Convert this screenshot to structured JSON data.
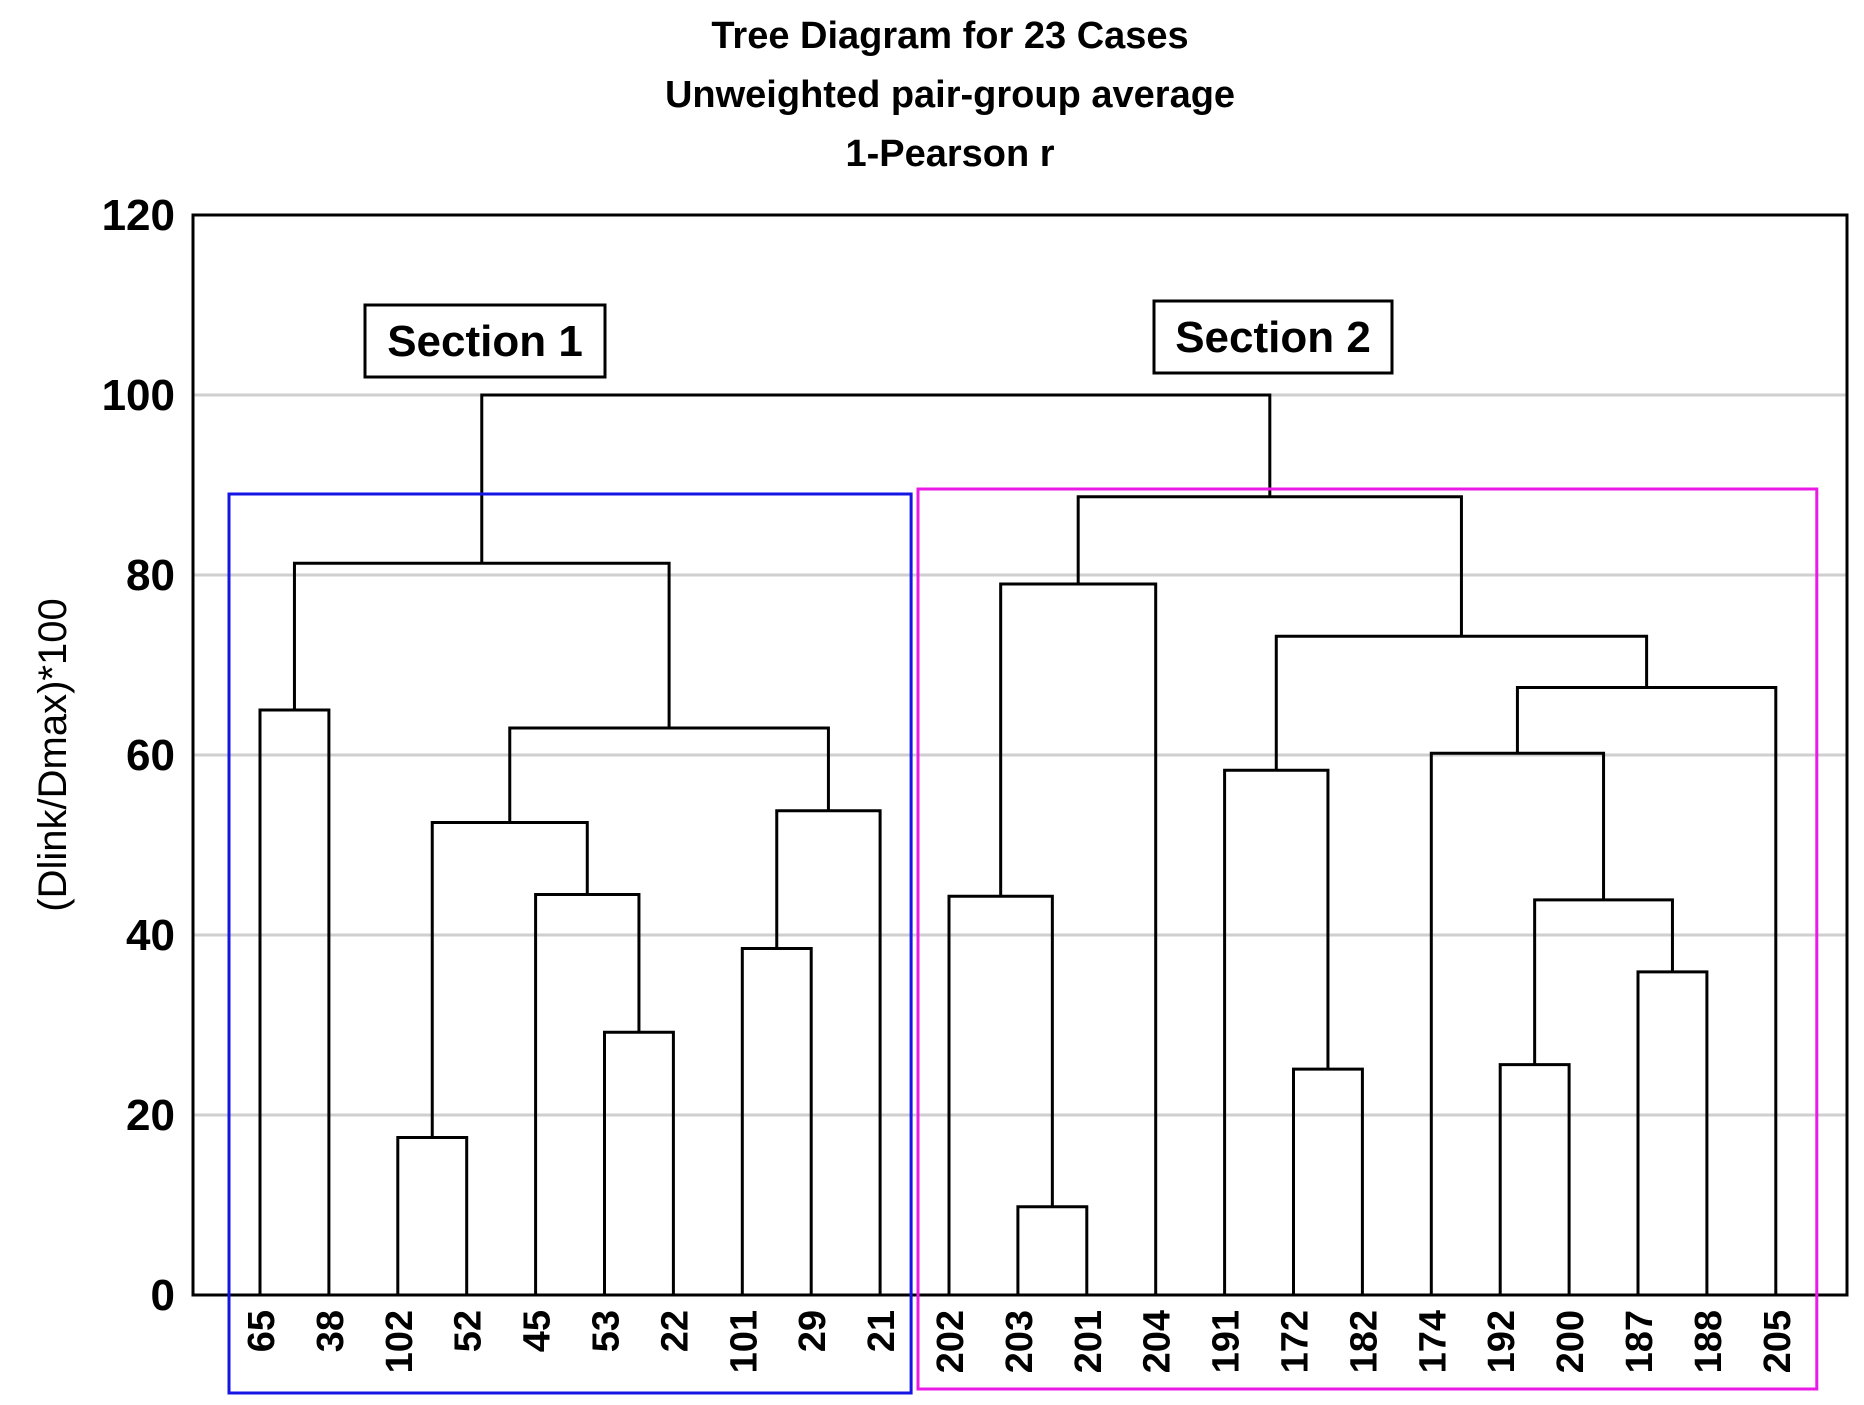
{
  "chart_data": {
    "type": "dendrogram",
    "title": "Tree Diagram for 23 Cases",
    "subtitle_lines": [
      "Unweighted pair-group average",
      "1-Pearson r"
    ],
    "ylabel": "(Dlink/Dmax)*100",
    "xlabel": "",
    "ylim": [
      0,
      120
    ],
    "yticks": [
      0,
      20,
      40,
      60,
      80,
      100,
      120
    ],
    "grid": true,
    "leaves": [
      "65",
      "38",
      "102",
      "52",
      "45",
      "53",
      "22",
      "101",
      "29",
      "21",
      "202",
      "203",
      "201",
      "204",
      "191",
      "172",
      "182",
      "174",
      "192",
      "200",
      "187",
      "188",
      "205"
    ],
    "links": [
      {
        "left": "102",
        "right": "52",
        "height": 17.5
      },
      {
        "left": "53",
        "right": "22",
        "height": 29.2
      },
      {
        "left": "45",
        "right": "c2",
        "height": 44.5
      },
      {
        "left": "c1",
        "right": "c3",
        "height": 52.5
      },
      {
        "left": "101",
        "right": "29",
        "height": 38.5
      },
      {
        "left": "c5",
        "right": "21",
        "height": 53.8
      },
      {
        "left": "c4",
        "right": "c6",
        "height": 63.0
      },
      {
        "left": "65",
        "right": "38",
        "height": 65.0
      },
      {
        "left": "c8",
        "right": "c7",
        "height": 81.3
      },
      {
        "left": "203",
        "right": "201",
        "height": 9.8
      },
      {
        "left": "202",
        "right": "c10",
        "height": 44.3
      },
      {
        "left": "c11",
        "right": "204",
        "height": 79.0
      },
      {
        "left": "172",
        "right": "182",
        "height": 25.1
      },
      {
        "left": "191",
        "right": "c13",
        "height": 58.3
      },
      {
        "left": "192",
        "right": "200",
        "height": 25.6
      },
      {
        "left": "187",
        "right": "188",
        "height": 35.9
      },
      {
        "left": "c15",
        "right": "c16",
        "height": 43.9
      },
      {
        "left": "174",
        "right": "c17",
        "height": 60.2
      },
      {
        "left": "c18",
        "right": "205",
        "height": 67.5
      },
      {
        "left": "c14",
        "right": "c19",
        "height": 73.2
      },
      {
        "left": "c12",
        "right": "c20",
        "height": 88.7
      },
      {
        "left": "c9",
        "right": "c21",
        "height": 100.0
      }
    ],
    "annotations": [
      {
        "text": "Section 1",
        "box_color": "#1515e6",
        "range": [
          "65",
          "21"
        ]
      },
      {
        "text": "Section 2",
        "box_color": "#ea1ae6",
        "range": [
          "202",
          "205"
        ]
      }
    ]
  }
}
